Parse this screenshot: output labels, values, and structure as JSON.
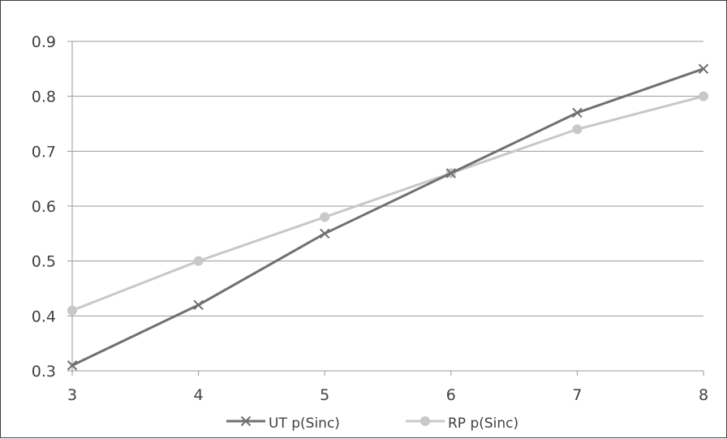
{
  "chart_data": {
    "type": "line",
    "x": [
      3,
      4,
      5,
      6,
      7,
      8
    ],
    "series": [
      {
        "name": "UT p(Sinc)",
        "values": [
          0.31,
          0.42,
          0.55,
          0.66,
          0.77,
          0.85
        ],
        "color": "#707070",
        "marker": "x"
      },
      {
        "name": "RP p(Sinc)",
        "values": [
          0.41,
          0.5,
          0.58,
          0.66,
          0.74,
          0.8
        ],
        "color": "#c8c8c8",
        "marker": "circle"
      }
    ],
    "x_ticks": [
      "3",
      "4",
      "5",
      "6",
      "7",
      "8"
    ],
    "y_ticks": [
      "0.3",
      "0.4",
      "0.5",
      "0.6",
      "0.7",
      "0.8",
      "0.9"
    ],
    "xlim": [
      3,
      8
    ],
    "ylim": [
      0.3,
      0.9
    ],
    "grid": "horizontal",
    "legend": "bottom"
  }
}
